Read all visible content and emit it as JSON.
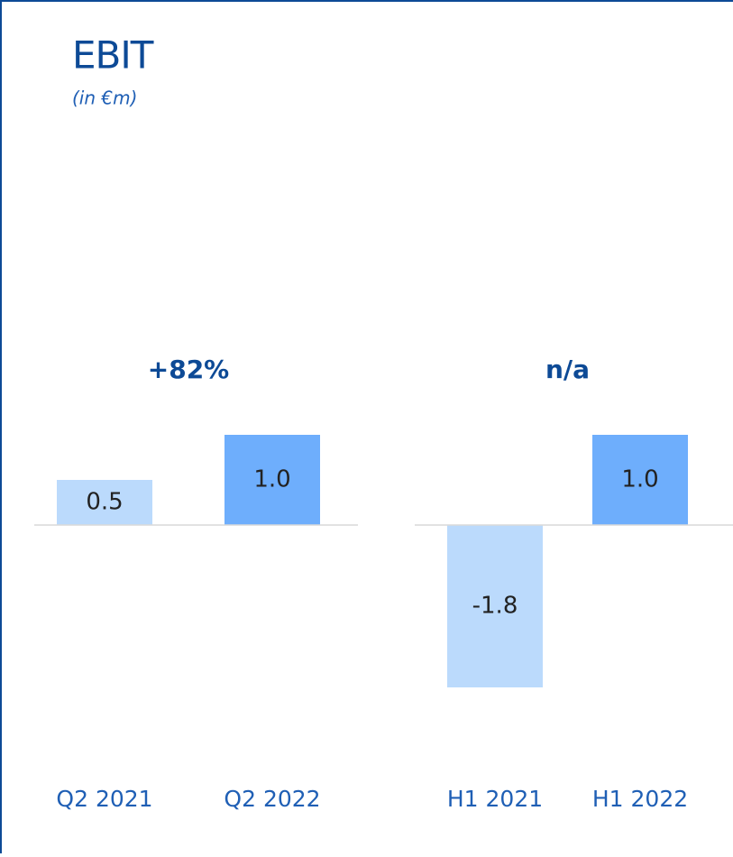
{
  "title": "EBIT",
  "subtitle": "(in €m)",
  "chart_data": [
    {
      "type": "bar",
      "annotation": "+82%",
      "categories": [
        "Q2 2021",
        "Q2 2022"
      ],
      "values": [
        0.5,
        1.0
      ],
      "value_labels": [
        "0.5",
        "1.0"
      ],
      "colors": [
        "#bbdafc",
        "#6eaefc"
      ],
      "ylim": [
        -2.5,
        2.5
      ]
    },
    {
      "type": "bar",
      "annotation": "n/a",
      "categories": [
        "H1 2021",
        "H1 2022"
      ],
      "values": [
        -1.8,
        1.0
      ],
      "value_labels": [
        "-1.8",
        "1.0"
      ],
      "colors": [
        "#bbdafc",
        "#6eaefc"
      ],
      "ylim": [
        -2.5,
        2.5
      ]
    }
  ]
}
